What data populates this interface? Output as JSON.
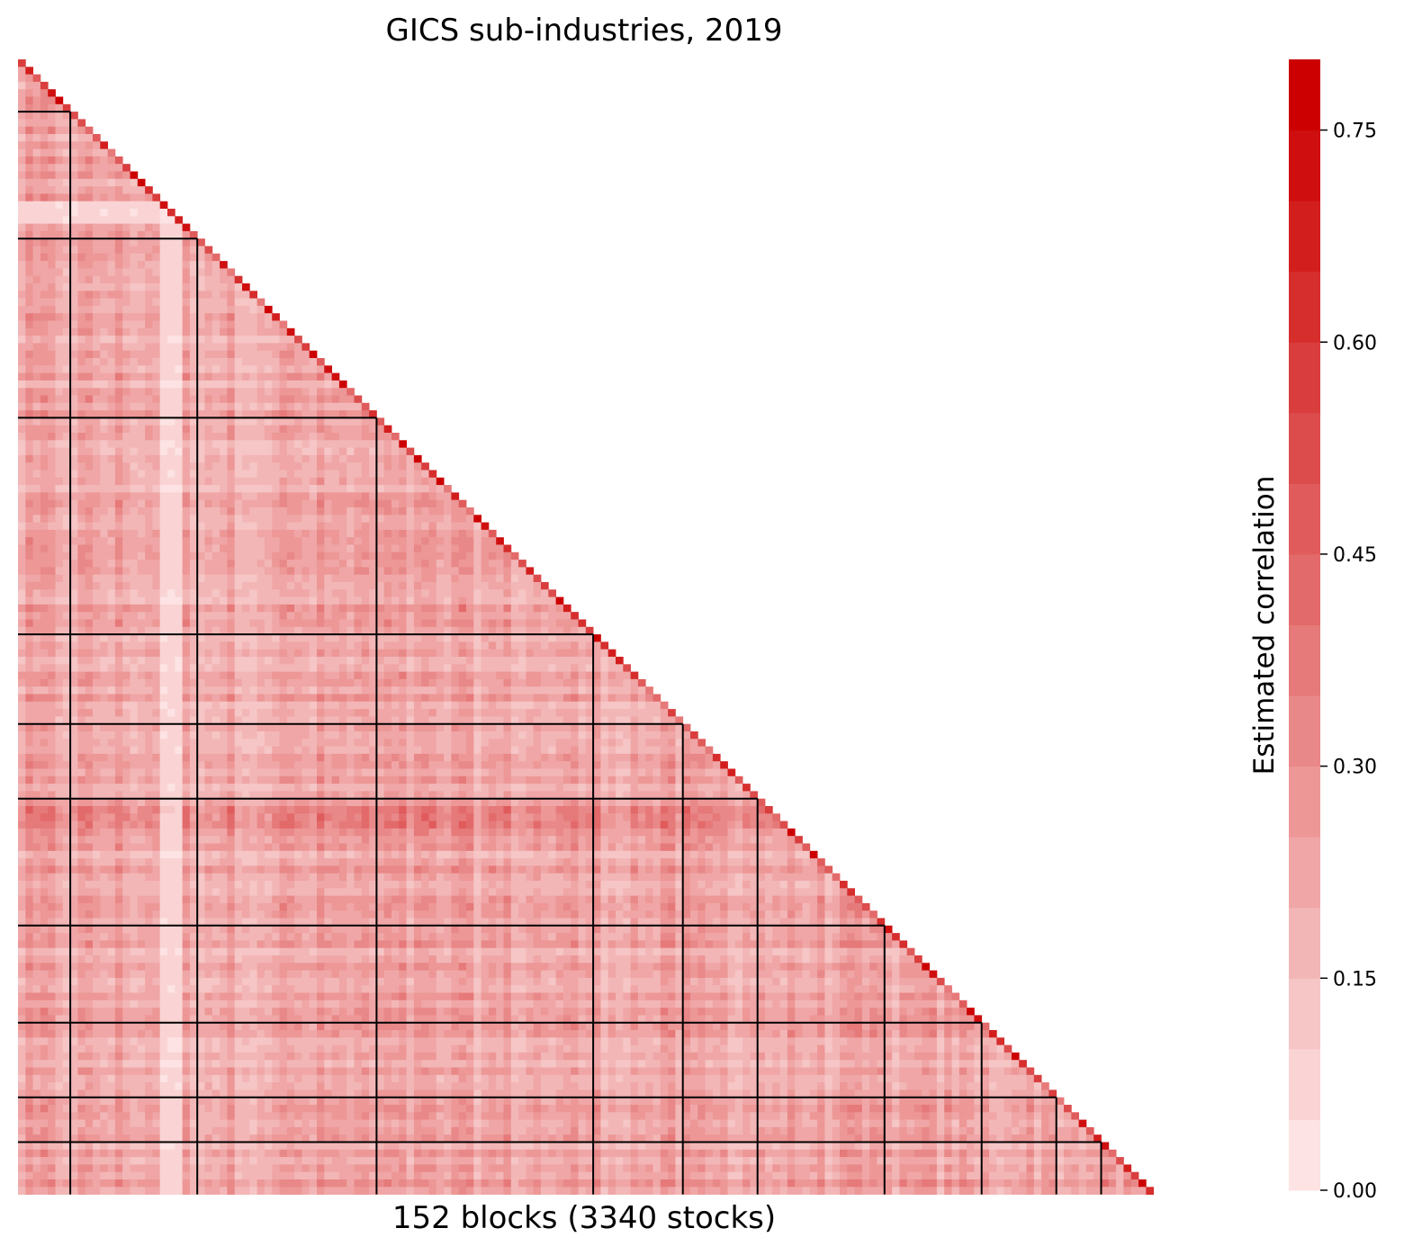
{
  "chart_data": {
    "type": "heatmap",
    "title": "GICS sub-industries, 2019",
    "xlabel": "152 blocks (3340 stocks)",
    "n_blocks": 152,
    "n_stocks": 3340,
    "lower_triangular": true,
    "group_boundaries": [
      7,
      24,
      48,
      77,
      89,
      99,
      116,
      129,
      139,
      145
    ],
    "colorbar": {
      "label": "Estimated correlation",
      "range": [
        0,
        0.8
      ],
      "levels": 16,
      "ticks": [
        0.0,
        0.15,
        0.3,
        0.45,
        0.6,
        0.75
      ],
      "tick_labels": [
        "0.00",
        "0.15",
        "0.30",
        "0.45",
        "0.60",
        "0.75"
      ],
      "color_low": "#fde3e3",
      "color_high": "#cc0000"
    },
    "typical_values": {
      "off_diagonal_mean": 0.2,
      "diagonal_max": 0.8,
      "low_row_blocks": [
        19,
        20,
        21
      ],
      "high_row_blocks": [
        100,
        101,
        102
      ]
    }
  }
}
